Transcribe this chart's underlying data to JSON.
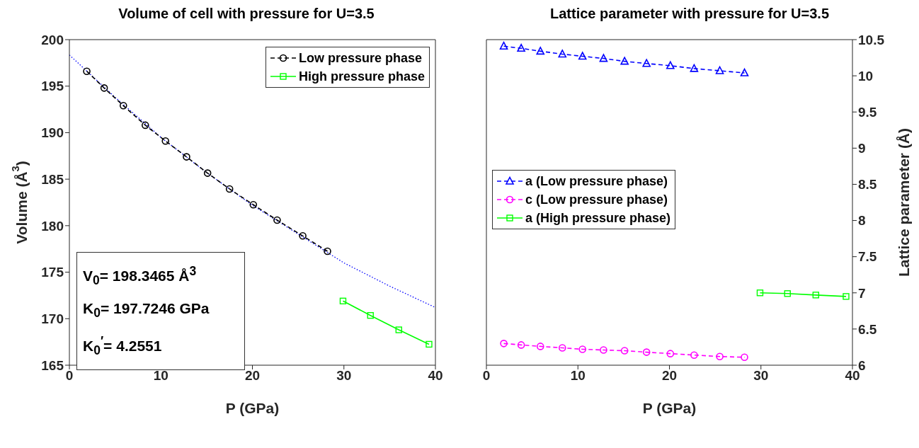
{
  "chart_data": [
    {
      "type": "line",
      "title": "Volume of cell with pressure for U=3.5",
      "xlabel": "P (GPa)",
      "ylabel": "Volume (Å$^{3}$)",
      "xlim": [
        0,
        40
      ],
      "xticks": [
        0,
        10,
        20,
        30,
        40
      ],
      "ylim": [
        165,
        200
      ],
      "yticks": [
        165,
        170,
        175,
        180,
        185,
        190,
        195,
        200
      ],
      "grid": false,
      "legend": "top right",
      "annotations": [
        "V$_{0}$= 198.3465 Å$^{3}$",
        "K$_{0}$= 197.7246 GPa",
        "K$_{0}$$^{′}$= 4.2551"
      ],
      "series": [
        {
          "color": "#0000ff",
          "line_style": "dotted",
          "marker": "none",
          "x": [
            0,
            5,
            10,
            15,
            20,
            25,
            30,
            35,
            40
          ],
          "values": [
            198.35,
            193.8,
            189.5,
            185.7,
            182.2,
            179.1,
            176.0,
            173.5,
            171.2
          ]
        },
        {
          "name": "Low pressure phase",
          "color": "#000000",
          "line_style": "dashed",
          "marker": "circle",
          "x": [
            1.9,
            3.8,
            5.9,
            8.3,
            10.5,
            12.8,
            15.1,
            17.5,
            20.1,
            22.7,
            25.5,
            28.2
          ],
          "values": [
            196.6,
            194.8,
            192.9,
            190.8,
            189.1,
            187.4,
            185.65,
            183.95,
            182.25,
            180.6,
            178.9,
            177.25
          ]
        },
        {
          "name": "High pressure phase",
          "color": "#00ff00",
          "line_style": "solid",
          "marker": "square",
          "x": [
            29.9,
            32.9,
            36.0,
            39.3
          ],
          "values": [
            171.9,
            170.35,
            168.8,
            167.25
          ]
        }
      ]
    },
    {
      "type": "line",
      "title": "Lattice parameter with pressure for U=3.5",
      "xlabel": "P (GPa)",
      "y2label": "Lattice parameter (Å)",
      "xlim": [
        0,
        40
      ],
      "xticks": [
        0,
        10,
        20,
        30,
        40
      ],
      "y2lim": [
        6,
        10.5
      ],
      "y2ticks": [
        6,
        6.5,
        7,
        7.5,
        8,
        8.5,
        9,
        9.5,
        10,
        10.5
      ],
      "grid": false,
      "legend": "left",
      "series": [
        {
          "name": "a (Low pressure phase)",
          "axis": "y2",
          "color": "#0000ff",
          "line_style": "dashed",
          "marker": "triangle",
          "x": [
            1.9,
            3.8,
            5.9,
            8.3,
            10.5,
            12.8,
            15.1,
            17.5,
            20.1,
            22.7,
            25.5,
            28.2
          ],
          "values": [
            10.41,
            10.38,
            10.34,
            10.3,
            10.27,
            10.24,
            10.2,
            10.17,
            10.14,
            10.1,
            10.07,
            10.04
          ]
        },
        {
          "name": "c (Low pressure phase)",
          "axis": "y2",
          "color": "#ff00ff",
          "line_style": "dashed",
          "marker": "circle",
          "x": [
            1.9,
            3.8,
            5.9,
            8.3,
            10.5,
            12.8,
            15.1,
            17.5,
            20.1,
            22.7,
            25.5,
            28.2
          ],
          "values": [
            6.3,
            6.28,
            6.26,
            6.24,
            6.22,
            6.21,
            6.2,
            6.18,
            6.16,
            6.14,
            6.12,
            6.11
          ]
        },
        {
          "name": "a (High pressure phase)",
          "axis": "y2",
          "color": "#00ff00",
          "line_style": "solid",
          "marker": "square",
          "x": [
            29.9,
            32.9,
            36.0,
            39.3
          ],
          "values": [
            7.0,
            6.99,
            6.97,
            6.95
          ]
        }
      ]
    }
  ]
}
